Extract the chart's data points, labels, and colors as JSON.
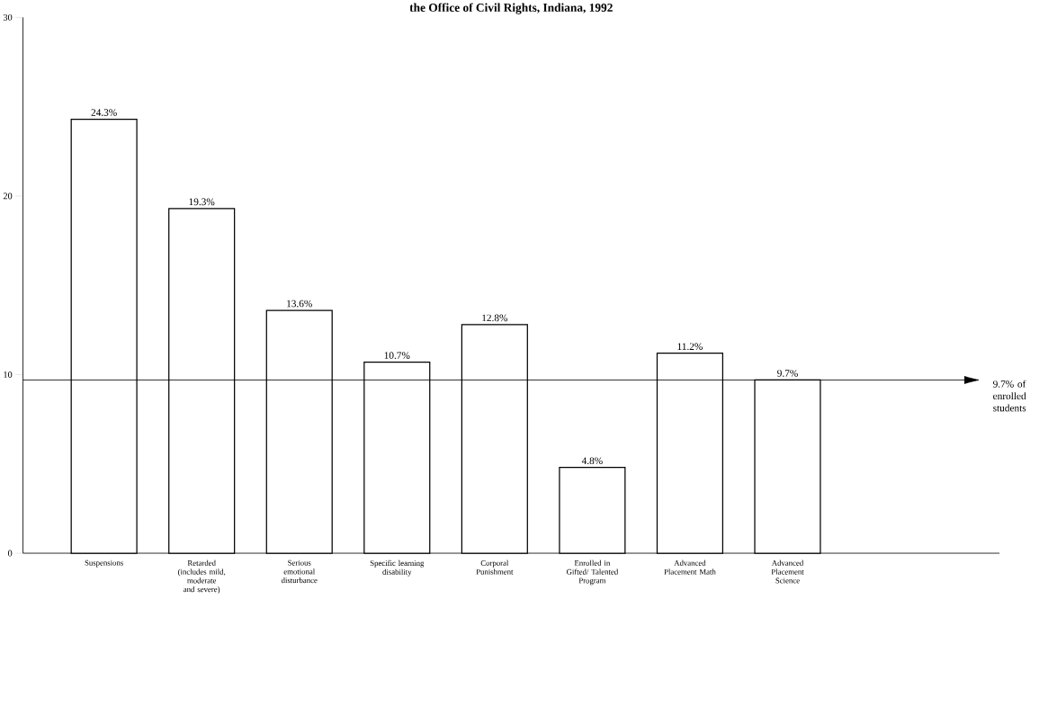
{
  "chart_data": {
    "type": "bar",
    "title": "the Office of Civil Rights, Indiana, 1992",
    "categories": [
      "Suspensions",
      "Retarded (includes mild, moderate and severe)",
      "Serious emotional disturbance",
      "Specific learning disability",
      "Corporal Punishment",
      "Enrolled in Gifted/ Talented Program",
      "Advanced Placement Math",
      "Advanced Placement Science"
    ],
    "values": [
      24.3,
      19.3,
      13.6,
      10.7,
      12.8,
      4.8,
      11.2,
      9.7
    ],
    "value_labels": [
      "24.3%",
      "19.3%",
      "13.6%",
      "10.7%",
      "12.8%",
      "4.8%",
      "11.2%",
      "9.7%"
    ],
    "color": "#ffffff",
    "ylim": [
      0,
      30
    ],
    "yticks": [
      0,
      10,
      20,
      30
    ],
    "ref_lines": [
      {
        "axis": "y",
        "value": 9.7,
        "label": "9.7% of enrolled students"
      }
    ]
  }
}
